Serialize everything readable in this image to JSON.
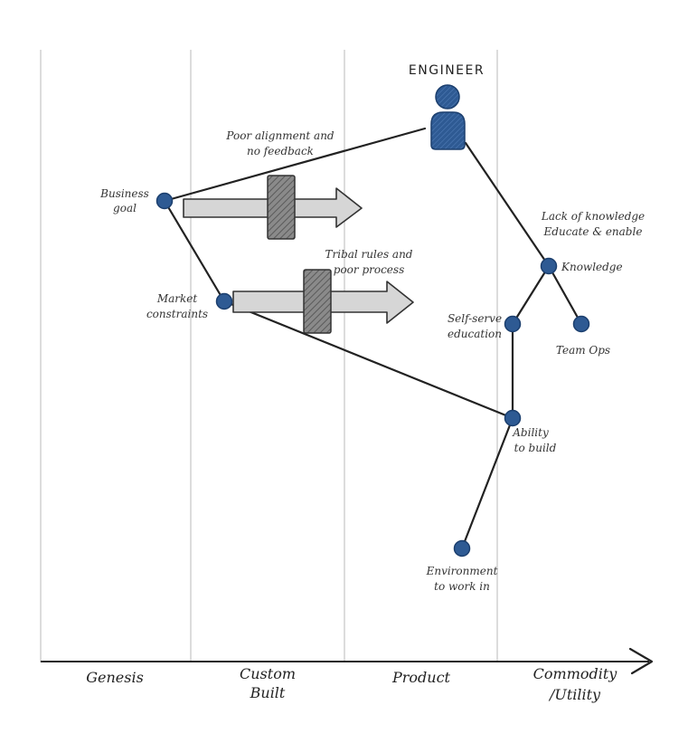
{
  "axis": {
    "stages": [
      {
        "line1": "Genesis",
        "line2": ""
      },
      {
        "line1": "Custom",
        "line2": "Built"
      },
      {
        "line1": "Product",
        "line2": ""
      },
      {
        "line1": "Commodity",
        "line2": "/Utility"
      }
    ]
  },
  "user": {
    "label": "ENGINEER"
  },
  "nodes": {
    "business_goal": {
      "line1": "Business",
      "line2": "goal"
    },
    "market_constraints": {
      "line1": "Market",
      "line2": "constraints"
    },
    "knowledge": {
      "line1": "Knowledge"
    },
    "self_serve": {
      "line1": "Self-serve",
      "line2": "education"
    },
    "team_ops": {
      "line1": "Team Ops"
    },
    "ability_to_build": {
      "line1": "Ability",
      "line2": "to build"
    },
    "environment": {
      "line1": "Environment",
      "line2": "to work in"
    }
  },
  "annotations": {
    "alignment": {
      "line1": "Poor alignment and",
      "line2": "no feedback"
    },
    "tribal": {
      "line1": "Tribal rules and",
      "line2": "poor process"
    },
    "knowledge_gap": {
      "line1": "Lack of knowledge",
      "line2": "Educate & enable"
    }
  },
  "colors": {
    "node": "#2e5a93",
    "node_stroke": "#1c3f6e",
    "link": "#222222",
    "arrow_fill": "#d6d6d6",
    "inertia_fill": "#7a7a7a",
    "grid": "#d0d0d0"
  }
}
